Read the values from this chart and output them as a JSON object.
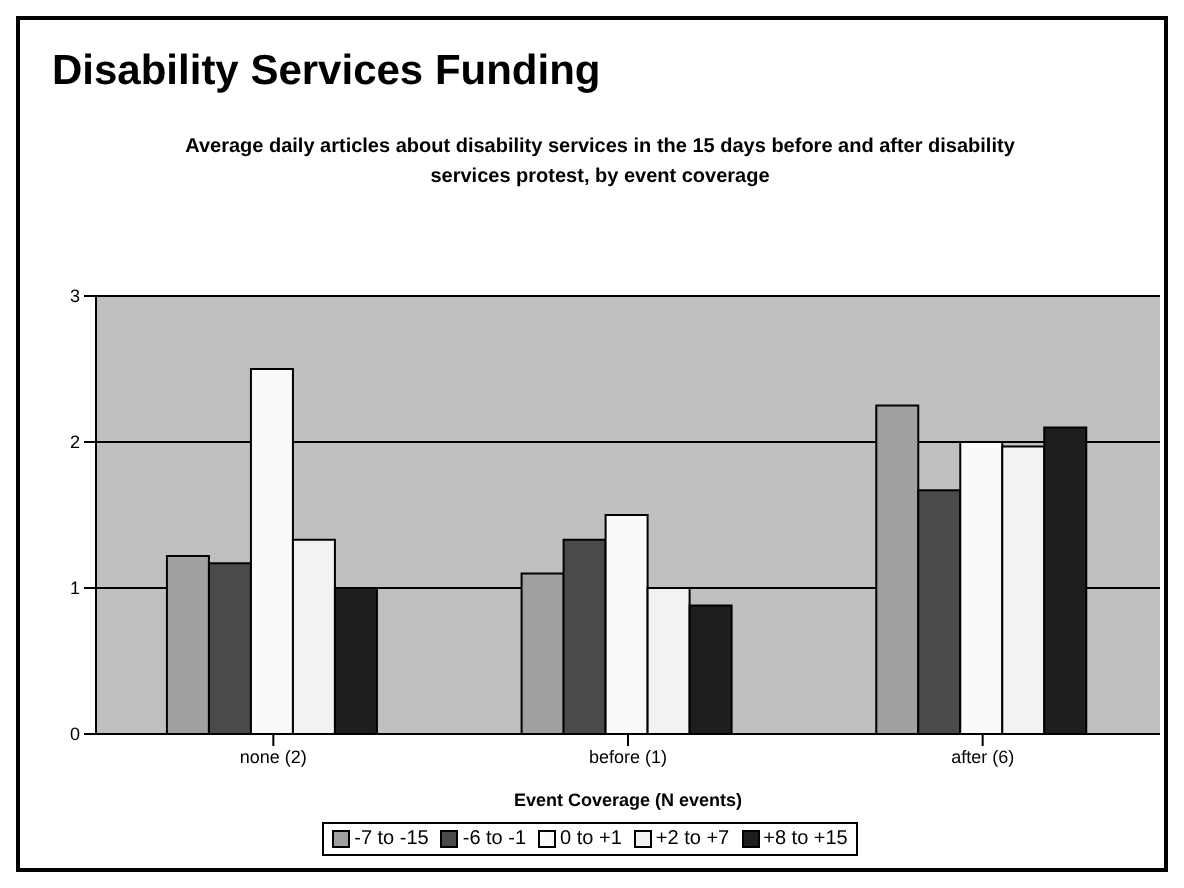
{
  "chart_data": {
    "type": "bar",
    "title": "Disability Services Funding",
    "subtitle": "Average daily articles about disability services in the 15 days before and after disability services protest, by event coverage",
    "xlabel": "Event Coverage (N events)",
    "categories": [
      "none (2)",
      "before (1)",
      "after (6)"
    ],
    "series": [
      {
        "name": "-7 to -15",
        "color": "#a0a0a0",
        "values": [
          1.22,
          1.1,
          2.25
        ]
      },
      {
        "name": "-6 to -1",
        "color": "#4a4a4a",
        "values": [
          1.17,
          1.33,
          1.67
        ]
      },
      {
        "name": "0 to +1",
        "color": "#fafafa",
        "values": [
          2.5,
          1.5,
          2.0
        ]
      },
      {
        "name": "+2 to +7",
        "color": "#f2f2f2",
        "values": [
          1.33,
          1.0,
          1.97
        ]
      },
      {
        "name": "+8 to +15",
        "color": "#1e1e1e",
        "values": [
          1.0,
          0.88,
          2.1
        ]
      }
    ],
    "ylim": [
      0,
      3
    ],
    "yticks": [
      0,
      1,
      2,
      3
    ],
    "grid": "y",
    "legend": "bottom"
  }
}
